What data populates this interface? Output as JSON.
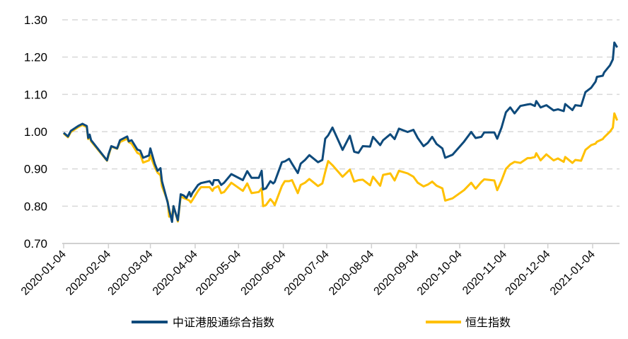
{
  "chart_data": {
    "type": "line",
    "title": "",
    "xlabel": "",
    "ylabel": "",
    "ylim": [
      0.7,
      1.3
    ],
    "yticks": [
      "0.70",
      "0.80",
      "0.90",
      "1.00",
      "1.10",
      "1.20",
      "1.30"
    ],
    "xticks": [
      "2020-01-04",
      "2020-02-04",
      "2020-03-04",
      "2020-04-04",
      "2020-05-04",
      "2020-06-04",
      "2020-07-04",
      "2020-08-04",
      "2020-09-04",
      "2020-10-04",
      "2020-11-04",
      "2020-12-04",
      "2021-01-04"
    ],
    "grid": "horizontal dashed",
    "legend_position": "bottom",
    "x": [
      "2020-01-04",
      "2020-01-07",
      "2020-01-09",
      "2020-01-14",
      "2020-01-17",
      "2020-01-20",
      "2020-01-21",
      "2020-01-22",
      "2020-01-23",
      "2020-02-03",
      "2020-02-04",
      "2020-02-06",
      "2020-02-10",
      "2020-02-12",
      "2020-02-17",
      "2020-02-18",
      "2020-02-20",
      "2020-02-24",
      "2020-02-26",
      "2020-02-28",
      "2020-03-03",
      "2020-03-04",
      "2020-03-07",
      "2020-03-09",
      "2020-03-11",
      "2020-03-12",
      "2020-03-16",
      "2020-03-17",
      "2020-03-19",
      "2020-03-20",
      "2020-03-23",
      "2020-03-25",
      "2020-03-27",
      "2020-03-29",
      "2020-03-31",
      "2020-04-01",
      "2020-04-02",
      "2020-04-06",
      "2020-04-08",
      "2020-04-14",
      "2020-04-16",
      "2020-04-17",
      "2020-04-20",
      "2020-04-22",
      "2020-04-24",
      "2020-04-29",
      "2020-05-07",
      "2020-05-10",
      "2020-05-13",
      "2020-05-18",
      "2020-05-20",
      "2020-05-21",
      "2020-05-23",
      "2020-05-26",
      "2020-05-28",
      "2020-05-29",
      "2020-06-03",
      "2020-06-05",
      "2020-06-08",
      "2020-06-10",
      "2020-06-14",
      "2020-06-16",
      "2020-06-19",
      "2020-06-22",
      "2020-06-28",
      "2020-07-01",
      "2020-07-03",
      "2020-07-05",
      "2020-07-08",
      "2020-07-15",
      "2020-07-20",
      "2020-07-23",
      "2020-07-26",
      "2020-07-29",
      "2020-08-03",
      "2020-08-05",
      "2020-08-10",
      "2020-08-12",
      "2020-08-17",
      "2020-08-20",
      "2020-08-23",
      "2020-08-29",
      "2020-09-02",
      "2020-09-05",
      "2020-09-09",
      "2020-09-12",
      "2020-09-15",
      "2020-09-18",
      "2020-09-22",
      "2020-09-24",
      "2020-09-29",
      "2020-10-07",
      "2020-10-12",
      "2020-10-15",
      "2020-10-19",
      "2020-10-21",
      "2020-10-28",
      "2020-10-30",
      "2020-11-02",
      "2020-11-05",
      "2020-11-08",
      "2020-11-11",
      "2020-11-15",
      "2020-11-20",
      "2020-11-22",
      "2020-11-25",
      "2020-11-26",
      "2020-11-29",
      "2020-12-03",
      "2020-12-08",
      "2020-12-11",
      "2020-12-15",
      "2020-12-16",
      "2020-12-21",
      "2020-12-23",
      "2020-12-27",
      "2020-12-30",
      "2021-01-03",
      "2021-01-06",
      "2021-01-07",
      "2021-01-11",
      "2021-01-12",
      "2021-01-16",
      "2021-01-18",
      "2021-01-19",
      "2021-01-21"
    ],
    "series": [
      {
        "name": "中证港股通综合指数",
        "color": "#0E4A7B",
        "values": [
          0.997,
          0.987,
          1.002,
          1.015,
          1.021,
          1.015,
          0.983,
          0.992,
          0.977,
          0.923,
          0.939,
          0.961,
          0.955,
          0.977,
          0.987,
          0.974,
          0.977,
          0.952,
          0.949,
          0.93,
          0.936,
          0.955,
          0.914,
          0.895,
          0.902,
          0.867,
          0.81,
          0.79,
          0.758,
          0.8,
          0.762,
          0.832,
          0.829,
          0.822,
          0.838,
          0.826,
          0.835,
          0.857,
          0.862,
          0.867,
          0.857,
          0.87,
          0.87,
          0.857,
          0.863,
          0.886,
          0.87,
          0.894,
          0.876,
          0.876,
          0.895,
          0.845,
          0.848,
          0.867,
          0.861,
          0.865,
          0.918,
          0.92,
          0.927,
          0.914,
          0.889,
          0.914,
          0.924,
          0.937,
          0.918,
          0.924,
          0.981,
          0.99,
          1.011,
          0.951,
          0.989,
          0.946,
          0.943,
          0.961,
          0.96,
          0.986,
          0.964,
          0.977,
          0.993,
          0.98,
          1.008,
          0.999,
          1.005,
          0.983,
          0.961,
          0.97,
          0.986,
          0.967,
          0.955,
          0.93,
          0.938,
          0.973,
          0.999,
          0.983,
          0.986,
          0.998,
          0.998,
          0.981,
          1.011,
          1.052,
          1.065,
          1.049,
          1.069,
          1.073,
          1.074,
          1.069,
          1.082,
          1.065,
          1.071,
          1.057,
          1.06,
          1.055,
          1.074,
          1.058,
          1.071,
          1.069,
          1.106,
          1.118,
          1.134,
          1.147,
          1.15,
          1.159,
          1.178,
          1.194,
          1.239,
          1.226
        ]
      },
      {
        "name": "恒生指数",
        "color": "#FFC000",
        "values": [
          0.995,
          0.985,
          0.999,
          1.012,
          1.018,
          1.012,
          0.98,
          0.989,
          0.974,
          0.922,
          0.935,
          0.96,
          0.954,
          0.972,
          0.981,
          0.972,
          0.968,
          0.943,
          0.939,
          0.917,
          0.923,
          0.936,
          0.905,
          0.89,
          0.883,
          0.854,
          0.813,
          0.772,
          0.775,
          0.8,
          0.759,
          0.826,
          0.822,
          0.819,
          0.815,
          0.81,
          0.816,
          0.841,
          0.851,
          0.851,
          0.841,
          0.848,
          0.854,
          0.835,
          0.838,
          0.863,
          0.841,
          0.861,
          0.835,
          0.838,
          0.848,
          0.8,
          0.803,
          0.819,
          0.81,
          0.803,
          0.854,
          0.867,
          0.867,
          0.87,
          0.835,
          0.857,
          0.863,
          0.873,
          0.854,
          0.861,
          0.892,
          0.921,
          0.91,
          0.879,
          0.898,
          0.866,
          0.87,
          0.871,
          0.856,
          0.879,
          0.855,
          0.884,
          0.888,
          0.869,
          0.895,
          0.888,
          0.879,
          0.863,
          0.853,
          0.858,
          0.866,
          0.855,
          0.848,
          0.815,
          0.821,
          0.843,
          0.863,
          0.847,
          0.865,
          0.872,
          0.869,
          0.843,
          0.869,
          0.9,
          0.912,
          0.919,
          0.916,
          0.929,
          0.929,
          0.932,
          0.942,
          0.923,
          0.939,
          0.923,
          0.928,
          0.919,
          0.932,
          0.916,
          0.924,
          0.922,
          0.951,
          0.964,
          0.968,
          0.973,
          0.98,
          0.985,
          1.0,
          1.011,
          1.049,
          1.03
        ]
      }
    ]
  }
}
